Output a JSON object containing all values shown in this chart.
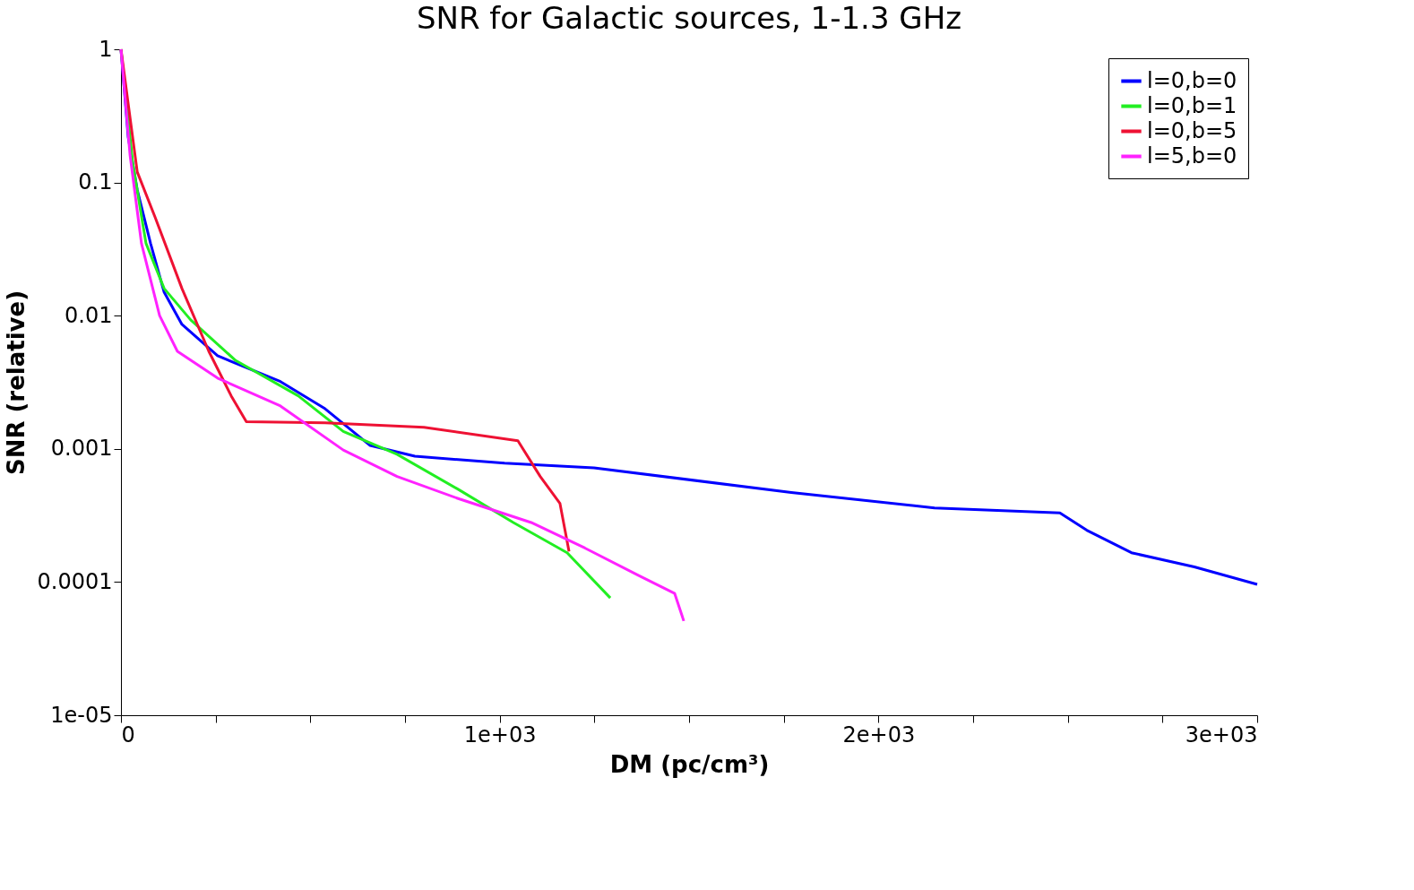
{
  "chart_data": {
    "type": "line",
    "title": "SNR for Galactic sources, 1-1.3 GHz",
    "xlabel": "DM (pc/cm³)",
    "ylabel": "SNR (relative)",
    "log": "y",
    "grid": false,
    "legend": "top right",
    "line_style": "solid",
    "marker": "none",
    "xlim": [
      0,
      3000
    ],
    "ylim": [
      1e-05,
      1
    ],
    "xticks": [
      0,
      {
        "value": 250,
        "label": null
      },
      {
        "value": 500,
        "label": null
      },
      {
        "value": 750,
        "label": null
      },
      {
        "value": 1000,
        "label": "1e+03"
      },
      {
        "value": 1250,
        "label": null
      },
      {
        "value": 1500,
        "label": null
      },
      {
        "value": 1750,
        "label": null
      },
      {
        "value": 2000,
        "label": "2e+03"
      },
      {
        "value": 2250,
        "label": null
      },
      {
        "value": 2500,
        "label": null
      },
      {
        "value": 2750,
        "label": null
      },
      {
        "value": 3000,
        "label": "3e+03"
      }
    ],
    "yticks": [
      {
        "value": 1e-05,
        "label": "1e-05"
      },
      {
        "value": 0.0001,
        "label": "0.0001"
      },
      {
        "value": 0.001,
        "label": "0.001"
      },
      {
        "value": 0.01,
        "label": "0.01"
      },
      {
        "value": 0.1,
        "label": "0.1"
      },
      1
    ],
    "series": [
      {
        "name": "l=0,b=0",
        "color": "#0000ff",
        "x": [
          0,
          19,
          43,
          78,
          114,
          161,
          255,
          421,
          539,
          658,
          776,
          1013,
          1249,
          1770,
          2148,
          2479,
          2550,
          2668,
          2834,
          3000
        ],
        "values": [
          1,
          0.22,
          0.088,
          0.035,
          0.015,
          0.0086,
          0.005,
          0.0032,
          0.002,
          0.00106,
          0.00088,
          0.00078,
          0.00072,
          0.00047,
          0.00036,
          0.00033,
          0.000245,
          0.000166,
          0.00013,
          9.6e-05
        ]
      },
      {
        "name": "l=0,b=1",
        "color": "#22ee22",
        "x": [
          0,
          31,
          66,
          114,
          184,
          303,
          468,
          587,
          729,
          894,
          1036,
          1178,
          1292
        ],
        "values": [
          1,
          0.14,
          0.035,
          0.016,
          0.0093,
          0.0046,
          0.0025,
          0.00135,
          0.00091,
          0.00049,
          0.00028,
          0.000166,
          7.6e-05
        ]
      },
      {
        "name": "l=0,b=5",
        "color": "#ee1133",
        "x": [
          0,
          43,
          90,
          161,
          232,
          291,
          331,
          539,
          800,
          1048,
          1107,
          1159,
          1183
        ],
        "values": [
          1,
          0.12,
          0.055,
          0.016,
          0.0054,
          0.0025,
          0.0016,
          0.00157,
          0.00145,
          0.00115,
          0.00062,
          0.00039,
          0.00017
        ]
      },
      {
        "name": "l=5,b=0",
        "color": "#ff22ff",
        "x": [
          0,
          24,
          54,
          102,
          149,
          255,
          421,
          587,
          729,
          894,
          1083,
          1225,
          1367,
          1462,
          1486
        ],
        "values": [
          1,
          0.16,
          0.035,
          0.01,
          0.0054,
          0.0034,
          0.0021,
          0.00098,
          0.00062,
          0.00042,
          0.00028,
          0.00018,
          0.000112,
          8.2e-05,
          5.1e-05
        ]
      }
    ]
  }
}
